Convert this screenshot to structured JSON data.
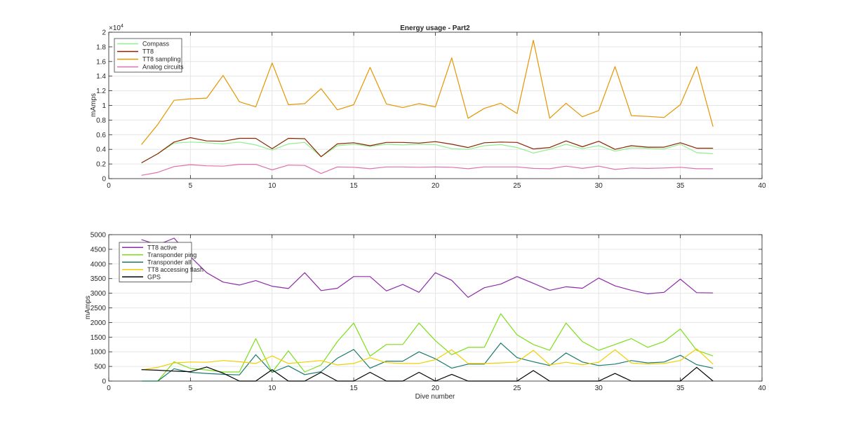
{
  "chart_data": [
    {
      "type": "line",
      "title": "Energy usage - Part2",
      "xlabel": "",
      "ylabel": "mAmps",
      "exponent_label": "×10",
      "exponent_power": "4",
      "xlim": [
        0,
        40
      ],
      "ylim": [
        0,
        20000
      ],
      "xticks": [
        0,
        5,
        10,
        15,
        20,
        25,
        30,
        35,
        40
      ],
      "xtick_labels": [
        "0",
        "5",
        "10",
        "15",
        "20",
        "25",
        "30",
        "35",
        "40"
      ],
      "yticks": [
        0,
        2000,
        4000,
        6000,
        8000,
        10000,
        12000,
        14000,
        16000,
        18000,
        20000
      ],
      "ytick_labels": [
        "0",
        "0.2",
        "0.4",
        "0.6",
        "0.8",
        "1",
        "1.2",
        "1.4",
        "1.6",
        "1.8",
        "2"
      ],
      "grid": true,
      "legend_position": "top-left",
      "x": [
        2,
        3,
        4,
        5,
        6,
        7,
        8,
        9,
        10,
        11,
        12,
        13,
        14,
        15,
        16,
        17,
        18,
        19,
        20,
        21,
        22,
        23,
        24,
        25,
        26,
        27,
        28,
        29,
        30,
        31,
        32,
        33,
        34,
        35,
        36,
        37
      ],
      "series": [
        {
          "name": "Compass",
          "color": "#90ee90",
          "values": [
            2150,
            3400,
            4850,
            5000,
            4900,
            4750,
            5000,
            4600,
            3900,
            4750,
            4950,
            3000,
            4500,
            4700,
            4400,
            4700,
            4600,
            4700,
            4650,
            4100,
            4000,
            4500,
            4650,
            4250,
            3500,
            4000,
            4700,
            4100,
            4500,
            3750,
            4200,
            4150,
            4050,
            4700,
            3550,
            3400
          ]
        },
        {
          "name": "TT8",
          "color": "#8b2500",
          "values": [
            2150,
            3400,
            5000,
            5600,
            5150,
            5100,
            5500,
            5500,
            4100,
            5500,
            5450,
            3000,
            4750,
            4900,
            4500,
            4950,
            4950,
            4850,
            5050,
            4700,
            4250,
            4900,
            5000,
            4950,
            4050,
            4250,
            5150,
            4350,
            5100,
            4000,
            4500,
            4300,
            4300,
            4900,
            4150,
            4150
          ]
        },
        {
          "name": "TT8 sampling",
          "color": "#e69500",
          "values": [
            4650,
            7400,
            10700,
            10900,
            11000,
            14100,
            10500,
            9800,
            15800,
            10100,
            10250,
            12300,
            9400,
            10100,
            15200,
            10200,
            9700,
            10250,
            9800,
            16500,
            8250,
            9600,
            10300,
            8900,
            18900,
            8250,
            10300,
            8450,
            9300,
            15300,
            8600,
            8500,
            8350,
            10100,
            15300,
            7100
          ]
        },
        {
          "name": "Analog circuits",
          "color": "#e070b0",
          "values": [
            450,
            850,
            1650,
            1900,
            1750,
            1700,
            1950,
            1950,
            1200,
            1850,
            1800,
            700,
            1600,
            1550,
            1350,
            1600,
            1600,
            1550,
            1600,
            1550,
            1350,
            1600,
            1600,
            1600,
            1400,
            1350,
            1700,
            1400,
            1700,
            1250,
            1450,
            1400,
            1450,
            1550,
            1350,
            1350
          ]
        }
      ]
    },
    {
      "type": "line",
      "title": "",
      "xlabel": "Dive number",
      "ylabel": "mAmps",
      "xlim": [
        0,
        40
      ],
      "ylim": [
        0,
        5000
      ],
      "xticks": [
        0,
        5,
        10,
        15,
        20,
        25,
        30,
        35,
        40
      ],
      "xtick_labels": [
        "0",
        "5",
        "10",
        "15",
        "20",
        "25",
        "30",
        "35",
        "40"
      ],
      "yticks": [
        0,
        500,
        1000,
        1500,
        2000,
        2500,
        3000,
        3500,
        4000,
        4500,
        5000
      ],
      "ytick_labels": [
        "0",
        "500",
        "1000",
        "1500",
        "2000",
        "2500",
        "3000",
        "3500",
        "4000",
        "4500",
        "5000"
      ],
      "grid": true,
      "legend_position": "top-left",
      "x": [
        2,
        3,
        4,
        5,
        6,
        7,
        8,
        9,
        10,
        11,
        12,
        13,
        14,
        15,
        16,
        17,
        18,
        19,
        20,
        21,
        22,
        23,
        24,
        25,
        26,
        27,
        28,
        29,
        30,
        31,
        32,
        33,
        34,
        35,
        36,
        37
      ],
      "series": [
        {
          "name": "TT8 active",
          "color": "#8e2ca8",
          "values": [
            4830,
            4650,
            4880,
            4250,
            3700,
            3380,
            3280,
            3430,
            3240,
            3160,
            3700,
            3090,
            3170,
            3570,
            3570,
            3080,
            3300,
            3030,
            3700,
            3440,
            2860,
            3190,
            3310,
            3570,
            3340,
            3100,
            3220,
            3170,
            3520,
            3250,
            3100,
            2980,
            3030,
            3480,
            3020,
            3010
          ]
        },
        {
          "name": "Transponder ping",
          "color": "#7cde1a",
          "values": [
            0,
            0,
            660,
            430,
            380,
            310,
            310,
            1450,
            300,
            1030,
            310,
            550,
            1350,
            1980,
            850,
            1250,
            1250,
            1980,
            1380,
            900,
            1150,
            1150,
            2300,
            1580,
            1250,
            1050,
            1980,
            1350,
            1050,
            1250,
            1450,
            1150,
            1350,
            1780,
            1050,
            860
          ]
        },
        {
          "name": "Transponder all",
          "color": "#1a7a6e",
          "values": [
            0,
            0,
            420,
            300,
            260,
            230,
            210,
            900,
            300,
            520,
            220,
            320,
            780,
            1080,
            440,
            680,
            680,
            1000,
            760,
            440,
            580,
            580,
            1300,
            800,
            660,
            530,
            960,
            650,
            530,
            580,
            700,
            620,
            650,
            880,
            560,
            440
          ]
        },
        {
          "name": "TT8 accessing flash",
          "color": "#f0cf00",
          "values": [
            380,
            470,
            620,
            650,
            640,
            700,
            660,
            600,
            860,
            600,
            650,
            700,
            550,
            600,
            800,
            630,
            600,
            600,
            730,
            1070,
            600,
            600,
            620,
            650,
            1050,
            550,
            640,
            560,
            640,
            1070,
            620,
            580,
            600,
            700,
            1100,
            580
          ]
        },
        {
          "name": "GPS",
          "color": "#000000",
          "values": [
            390,
            370,
            340,
            320,
            480,
            270,
            0,
            0,
            390,
            0,
            0,
            300,
            0,
            0,
            300,
            0,
            0,
            300,
            0,
            230,
            0,
            0,
            0,
            0,
            360,
            0,
            0,
            0,
            0,
            260,
            0,
            0,
            0,
            0,
            470,
            0
          ]
        }
      ]
    }
  ]
}
